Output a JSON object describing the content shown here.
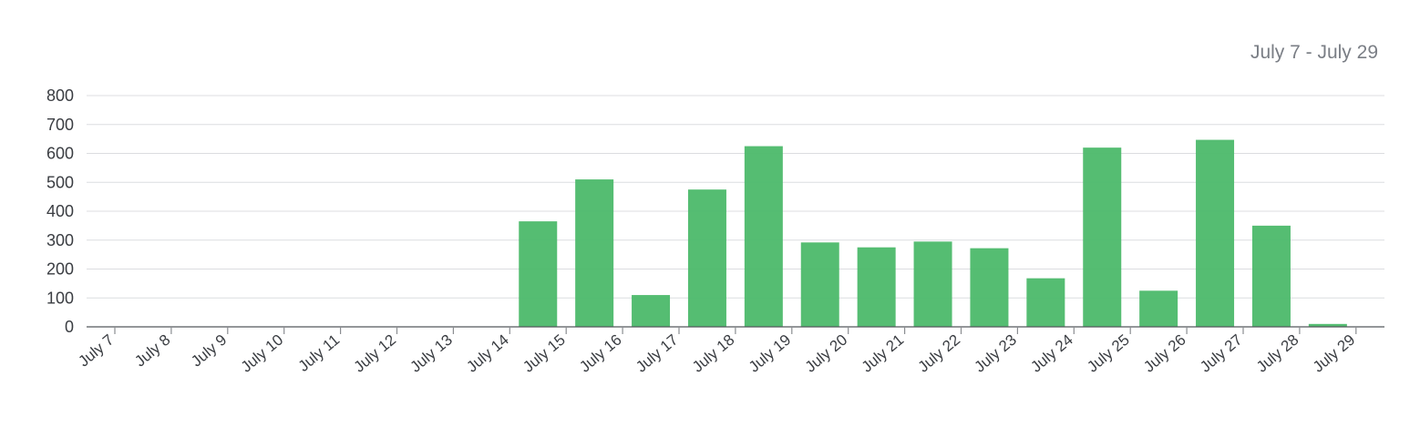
{
  "header": {
    "date_range": "July 7 - July 29"
  },
  "chart_data": {
    "type": "bar",
    "categories": [
      "July 7",
      "July 8",
      "July 9",
      "July 10",
      "July 11",
      "July 12",
      "July 13",
      "July 14",
      "July 15",
      "July 16",
      "July 17",
      "July 18",
      "July 19",
      "July 20",
      "July 21",
      "July 22",
      "July 23",
      "July 24",
      "July 25",
      "July 26",
      "July 27",
      "July 28",
      "July 29"
    ],
    "values": [
      0,
      0,
      0,
      0,
      0,
      0,
      0,
      0,
      365,
      510,
      110,
      475,
      625,
      292,
      275,
      295,
      272,
      168,
      620,
      125,
      647,
      350,
      10
    ],
    "yticks": [
      0,
      100,
      200,
      300,
      400,
      500,
      600,
      700,
      800
    ],
    "ylim": [
      0,
      800
    ],
    "grid": true,
    "bar_color": "#4cb96a",
    "title": "",
    "xlabel": "",
    "ylabel": ""
  }
}
